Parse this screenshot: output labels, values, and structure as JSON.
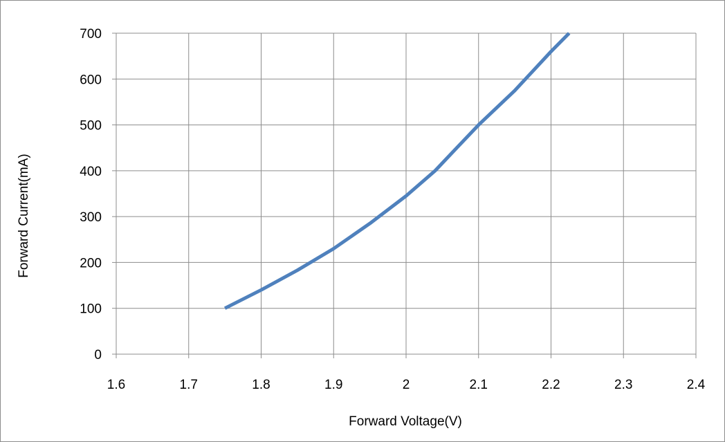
{
  "chart_data": {
    "type": "line",
    "title": "",
    "xlabel": "Forward Voltage(V)",
    "ylabel": "Forward Current(mA)",
    "xlim": [
      1.6,
      2.4
    ],
    "ylim": [
      0,
      700
    ],
    "x_ticks": [
      "1.6",
      "1.7",
      "1.8",
      "1.9",
      "2",
      "2.1",
      "2.2",
      "2.3",
      "2.4"
    ],
    "y_ticks": [
      "0",
      "100",
      "200",
      "300",
      "400",
      "500",
      "600",
      "700"
    ],
    "grid": true,
    "legend": "none",
    "series": [
      {
        "color": "#4f81bd",
        "x": [
          1.75,
          1.8,
          1.85,
          1.9,
          1.95,
          2.0,
          2.04,
          2.07,
          2.1,
          2.15,
          2.2,
          2.225
        ],
        "y": [
          100,
          140,
          183,
          230,
          285,
          345,
          400,
          450,
          500,
          575,
          660,
          700
        ]
      }
    ]
  }
}
